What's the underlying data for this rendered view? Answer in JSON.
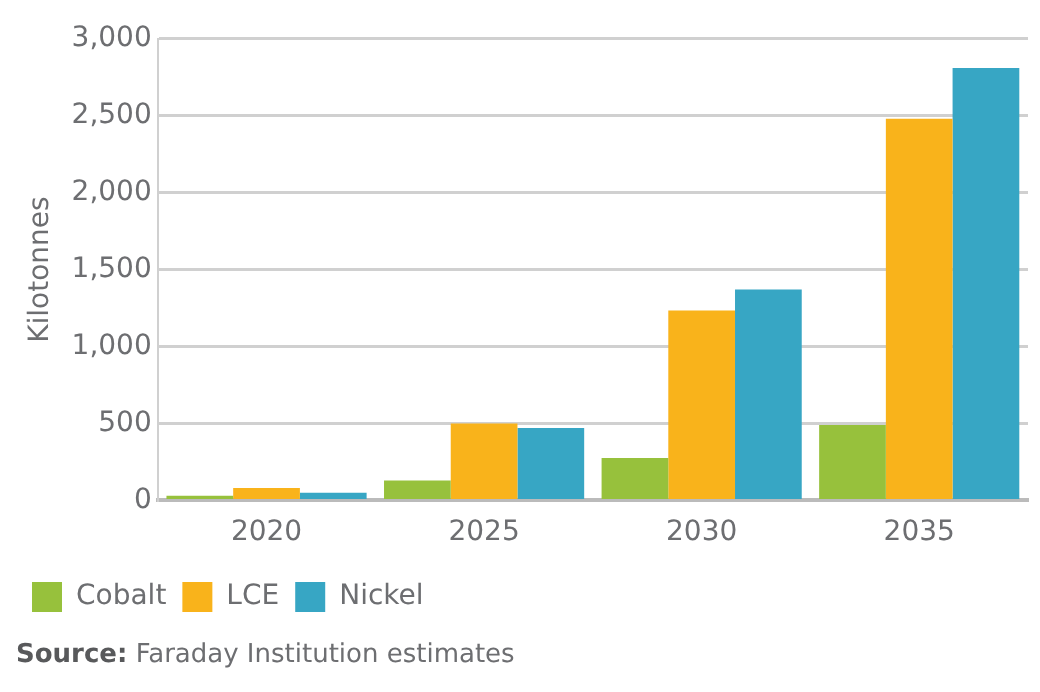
{
  "chart_data": {
    "type": "bar",
    "ylabel": "Kilotonnes",
    "categories": [
      "2020",
      "2025",
      "2030",
      "2035"
    ],
    "series": [
      {
        "name": "Cobalt",
        "color": "#97c13c",
        "values": [
          30,
          130,
          275,
          490
        ]
      },
      {
        "name": "LCE",
        "color": "#f9b31b",
        "values": [
          80,
          500,
          1235,
          2480
        ]
      },
      {
        "name": "Nickel",
        "color": "#37a6c4",
        "values": [
          50,
          470,
          1370,
          2810
        ]
      }
    ],
    "ylim": [
      0,
      3000
    ],
    "yticks": [
      {
        "value": 0,
        "label": "0"
      },
      {
        "value": 500,
        "label": "500"
      },
      {
        "value": 1000,
        "label": "1,000"
      },
      {
        "value": 1500,
        "label": "1,500"
      },
      {
        "value": 2000,
        "label": "2,000"
      },
      {
        "value": 2500,
        "label": "2,500"
      },
      {
        "value": 3000,
        "label": "3,000"
      }
    ],
    "grid": "y",
    "legend": "bottom left",
    "annotations": [
      "Source: Faraday Institution estimates"
    ]
  }
}
